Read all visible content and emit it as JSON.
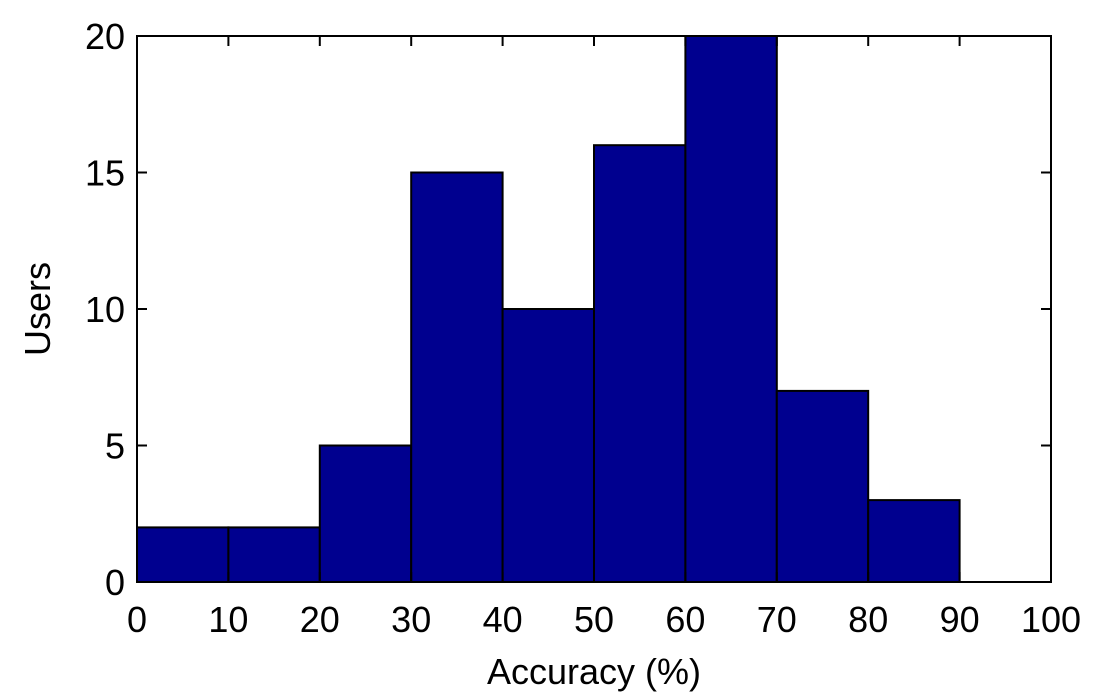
{
  "chart_data": {
    "type": "bar",
    "title": "",
    "xlabel": "Accuracy (%)",
    "ylabel": "Users",
    "bin_edges": [
      0,
      10,
      20,
      30,
      40,
      50,
      60,
      70,
      80,
      90,
      100
    ],
    "values": [
      2,
      2,
      5,
      15,
      10,
      16,
      20,
      7,
      3,
      0
    ],
    "xlim": [
      0,
      100
    ],
    "ylim": [
      0,
      20
    ],
    "xticks": [
      "0",
      "10",
      "20",
      "30",
      "40",
      "50",
      "60",
      "70",
      "80",
      "90",
      "100"
    ],
    "yticks": [
      "0",
      "5",
      "10",
      "15",
      "20"
    ],
    "grid": false,
    "bar_color": "#00008f",
    "edge_color": "#000000"
  }
}
